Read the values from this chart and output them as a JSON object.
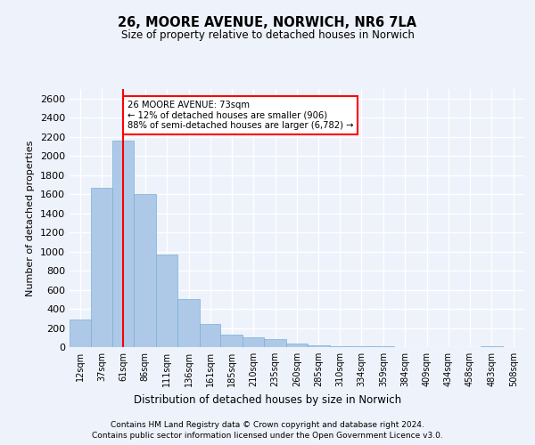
{
  "title": "26, MOORE AVENUE, NORWICH, NR6 7LA",
  "subtitle": "Size of property relative to detached houses in Norwich",
  "xlabel": "Distribution of detached houses by size in Norwich",
  "ylabel": "Number of detached properties",
  "bar_color": "#aec9e8",
  "bar_edge_color": "#7aafd4",
  "background_color": "#eef2fb",
  "grid_color": "#ffffff",
  "property_line_x": 73,
  "annotation_text": "26 MOORE AVENUE: 73sqm\n← 12% of detached houses are smaller (906)\n88% of semi-detached houses are larger (6,782) →",
  "footnote1": "Contains HM Land Registry data © Crown copyright and database right 2024.",
  "footnote2": "Contains public sector information licensed under the Open Government Licence v3.0.",
  "categories": [
    "12sqm",
    "37sqm",
    "61sqm",
    "86sqm",
    "111sqm",
    "136sqm",
    "161sqm",
    "185sqm",
    "210sqm",
    "235sqm",
    "260sqm",
    "285sqm",
    "310sqm",
    "334sqm",
    "359sqm",
    "384sqm",
    "409sqm",
    "434sqm",
    "458sqm",
    "483sqm",
    "508sqm"
  ],
  "values": [
    290,
    1670,
    2160,
    1600,
    970,
    500,
    245,
    130,
    100,
    80,
    35,
    20,
    10,
    5,
    5,
    3,
    2,
    1,
    1,
    5,
    2
  ],
  "bin_edges": [
    12,
    37,
    61,
    86,
    111,
    136,
    161,
    185,
    210,
    235,
    260,
    285,
    310,
    334,
    359,
    384,
    409,
    434,
    458,
    483,
    508,
    533
  ],
  "ylim": [
    0,
    2700
  ],
  "yticks": [
    0,
    200,
    400,
    600,
    800,
    1000,
    1200,
    1400,
    1600,
    1800,
    2000,
    2200,
    2400,
    2600
  ]
}
